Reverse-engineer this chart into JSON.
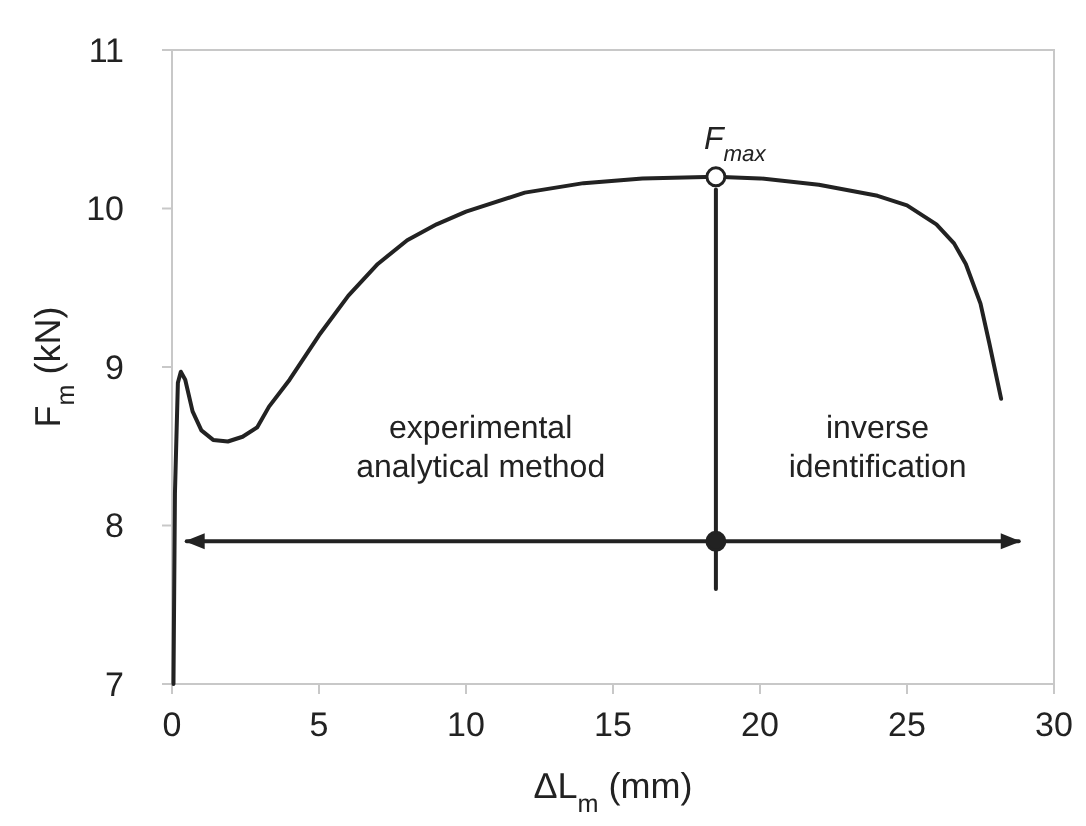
{
  "chart_data": {
    "type": "line",
    "xlabel": "ΔL$_{m}$ (mm)",
    "ylabel": "F$_{m}$ (kN)",
    "xlim": [
      0,
      30
    ],
    "ylim": [
      7,
      11
    ],
    "xticks": [
      0,
      5,
      10,
      15,
      20,
      25,
      30
    ],
    "yticks": [
      7,
      8,
      9,
      10,
      11
    ],
    "grid": false,
    "marker": "none",
    "line_style": "solid",
    "series": [
      {
        "color": "#222222",
        "x": [
          0.05,
          0.1,
          0.2,
          0.3,
          0.45,
          0.7,
          1,
          1.4,
          1.9,
          2.4,
          2.9,
          3.3,
          4,
          5,
          6,
          7,
          8,
          9,
          10,
          12,
          14,
          16,
          18.5,
          20,
          22,
          24,
          25,
          26,
          26.6,
          27,
          27.5,
          27.8,
          28.2
        ],
        "values": [
          7,
          8.2,
          8.9,
          8.97,
          8.92,
          8.72,
          8.6,
          8.54,
          8.53,
          8.56,
          8.62,
          8.75,
          8.92,
          9.2,
          9.45,
          9.65,
          9.8,
          9.9,
          9.98,
          10.1,
          10.16,
          10.19,
          10.2,
          10.19,
          10.15,
          10.08,
          10.02,
          9.9,
          9.78,
          9.65,
          9.4,
          9.15,
          8.8
        ]
      },
      {
        "type": "line",
        "color": "#222222",
        "x": [
          18.5,
          18.5
        ],
        "values": [
          10.12,
          7.6
        ]
      },
      {
        "type": "line",
        "color": "#222222",
        "x": [
          0.5,
          28.8
        ],
        "values": [
          7.9,
          7.9
        ]
      },
      {
        "type": "scatter",
        "marker": "circle",
        "color": "#222222",
        "x": [
          18.5
        ],
        "values": [
          10.2
        ]
      },
      {
        "type": "scatter",
        "marker": "circle",
        "color": "#222222",
        "x": [
          18.5
        ],
        "values": [
          7.9
        ]
      }
    ],
    "annotations": [
      {
        "text": "F$_{max}$",
        "x": 18.5,
        "y": 10.2
      },
      "experimental\nanalytical method",
      "inverse\nidentification"
    ]
  }
}
